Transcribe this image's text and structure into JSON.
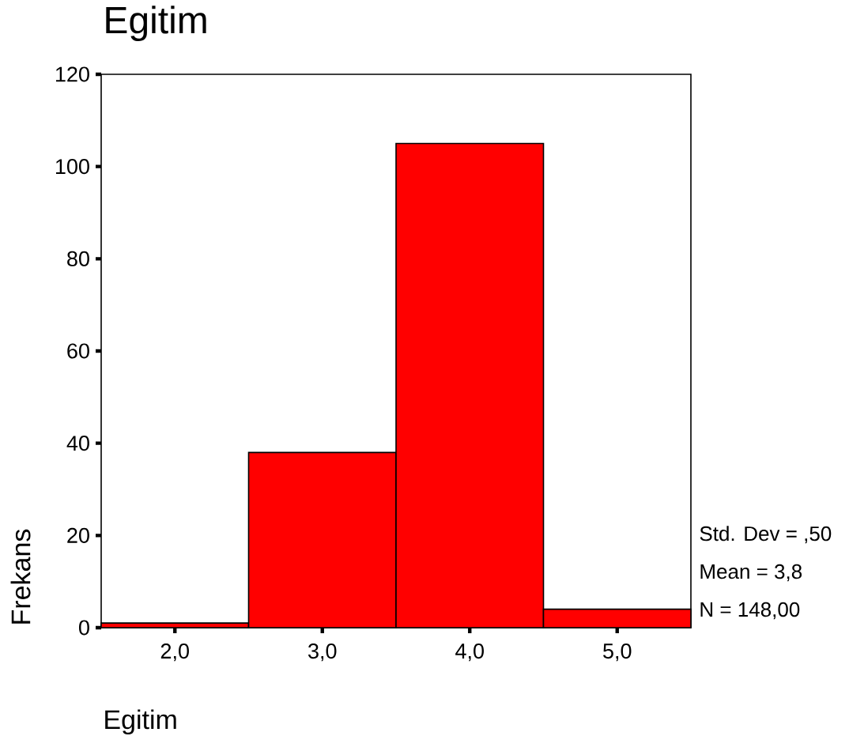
{
  "chart_data": {
    "type": "histogram",
    "title": "Egitim",
    "xlabel": "Egitim",
    "ylabel": "Frekans",
    "bins": [
      1.5,
      2.5,
      3.5,
      4.5,
      5.5
    ],
    "values": [
      1,
      38,
      105,
      4
    ],
    "color": "#ff0000",
    "xlim": [
      1.5,
      5.5
    ],
    "ylim": [
      0,
      120
    ],
    "xticks": [
      {
        "value": 2,
        "label": "2,0"
      },
      {
        "value": 3,
        "label": "3,0"
      },
      {
        "value": 4,
        "label": "4,0"
      },
      {
        "value": 5,
        "label": "5,0"
      }
    ],
    "yticks": [
      0,
      20,
      40,
      60,
      80,
      100,
      120
    ],
    "annotations": [
      "Std. Dev = ,50",
      "Mean = 3,8",
      "N = 148,00"
    ]
  }
}
